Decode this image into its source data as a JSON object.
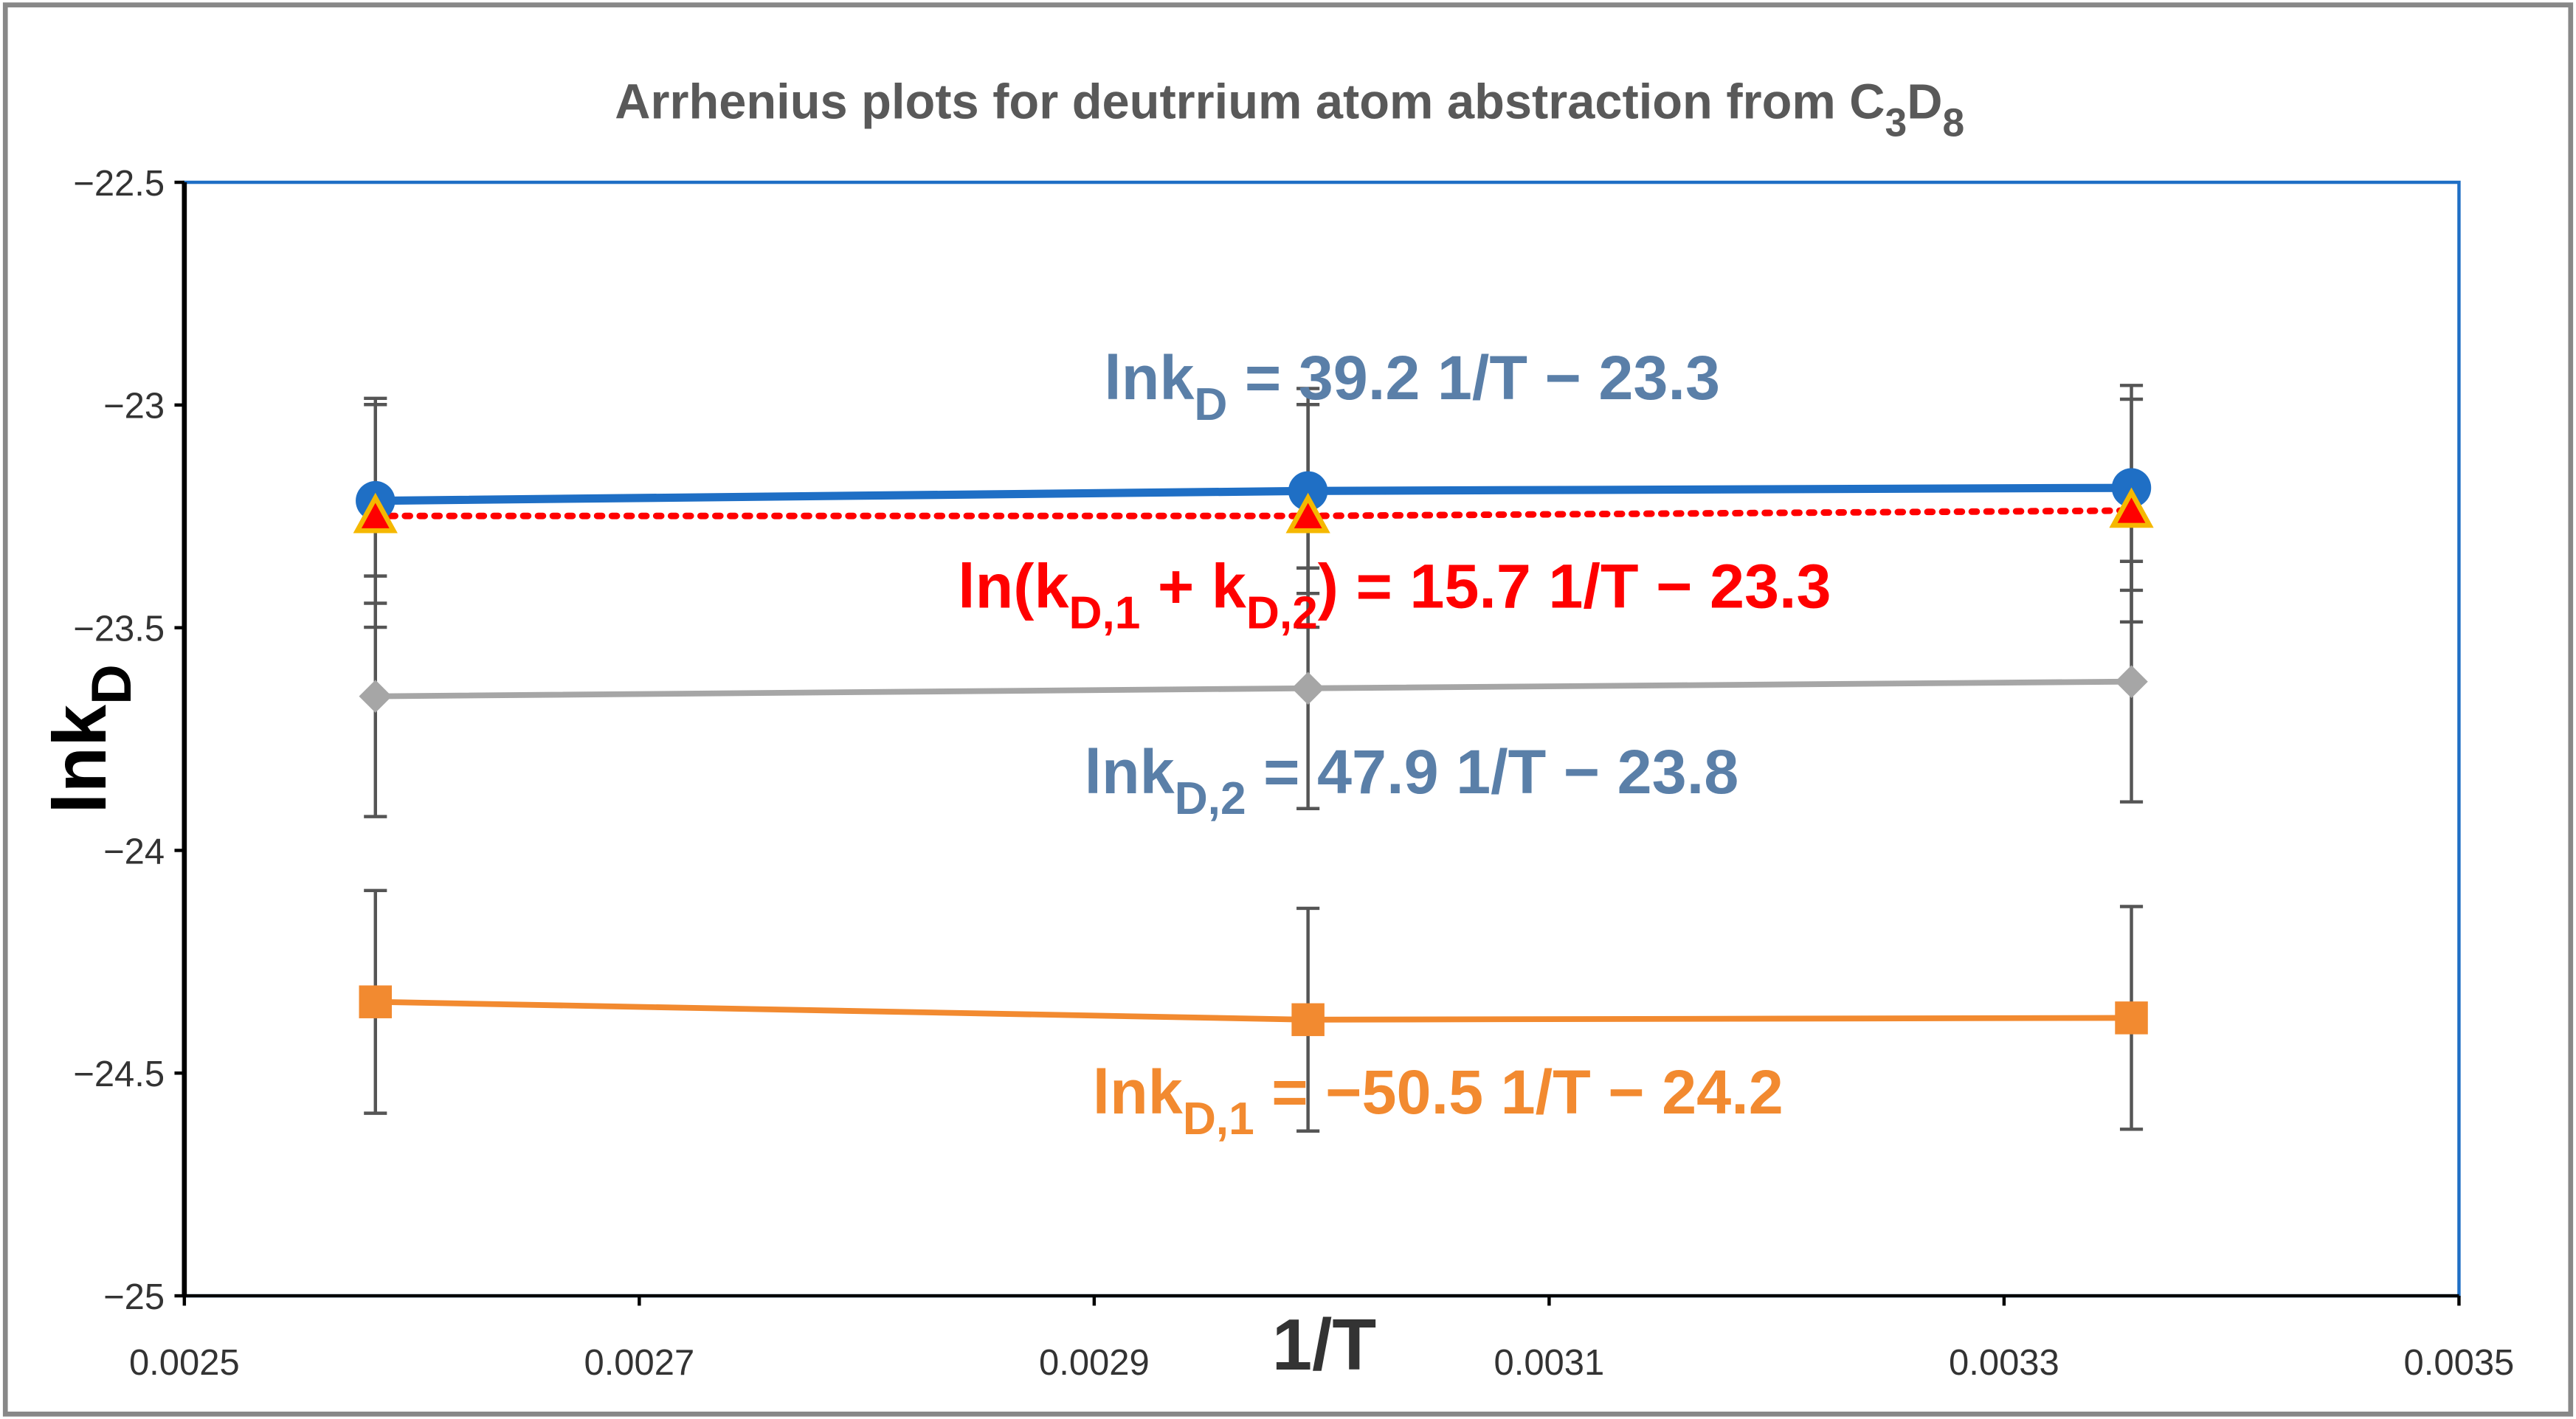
{
  "chart_data": {
    "type": "line",
    "title": [
      "Arrhenius plots for deutrrium atom  abstraction from C",
      "3",
      "D",
      "8"
    ],
    "x_label": "1/T",
    "y_label": [
      "lnk",
      "D"
    ],
    "x": [
      0.002584,
      0.002994,
      0.003356
    ],
    "xlim": [
      0.0025,
      0.0035
    ],
    "xticks": [
      0.0025,
      0.0027,
      0.0029,
      0.0031,
      0.0033,
      0.0035
    ],
    "ylim": [
      -25,
      -22.5
    ],
    "yticks": [
      {
        "value": -25,
        "label": "−25"
      },
      {
        "value": -24.5,
        "label": "−24.5"
      },
      {
        "value": -24,
        "label": "−24"
      },
      {
        "value": -23.5,
        "label": "−23.5"
      },
      {
        "value": -23,
        "label": "−23"
      },
      {
        "value": -22.5,
        "label": "−22.5"
      }
    ],
    "grid": false,
    "series": [
      {
        "color": "#1f6fc5",
        "marker": "circle",
        "line": "solid",
        "values": [
          -23.215,
          -23.193,
          -23.186
        ],
        "errors": [
          0.23,
          0.23,
          0.23
        ]
      },
      {
        "color": "#ff0000",
        "marker": "triangle",
        "line": "dotted",
        "values": [
          -23.249,
          -23.249,
          -23.237
        ],
        "errors": [
          0.25,
          0.25,
          0.25
        ]
      },
      {
        "color": "#a6a6a6",
        "marker": "diamond",
        "line": "solid",
        "values": [
          -23.654,
          -23.636,
          -23.621
        ],
        "errors": [
          0.27,
          0.27,
          0.27
        ]
      },
      {
        "color": "#f28a30",
        "marker": "square",
        "line": "solid",
        "values": [
          -24.34,
          -24.38,
          -24.376
        ],
        "errors": [
          0.25,
          0.25,
          0.25
        ]
      }
    ],
    "annotations": [
      {
        "color": "#5a7fa8",
        "segments": [
          "lnk",
          "D",
          " = 39.2  1/T − 23.3"
        ]
      },
      {
        "color": "#ff0000",
        "segments": [
          "ln(k",
          "D,1",
          " + k",
          "D,2",
          ") = 15.7  1/T − 23.3"
        ]
      },
      {
        "color": "#5a7fa8",
        "segments": [
          "lnk",
          "D,2",
          " = 47.9  1/T − 23.8"
        ]
      },
      {
        "color": "#f28a30",
        "segments": [
          "lnk",
          "D,1",
          " = −50.5  1/T − 24.2"
        ]
      }
    ]
  }
}
